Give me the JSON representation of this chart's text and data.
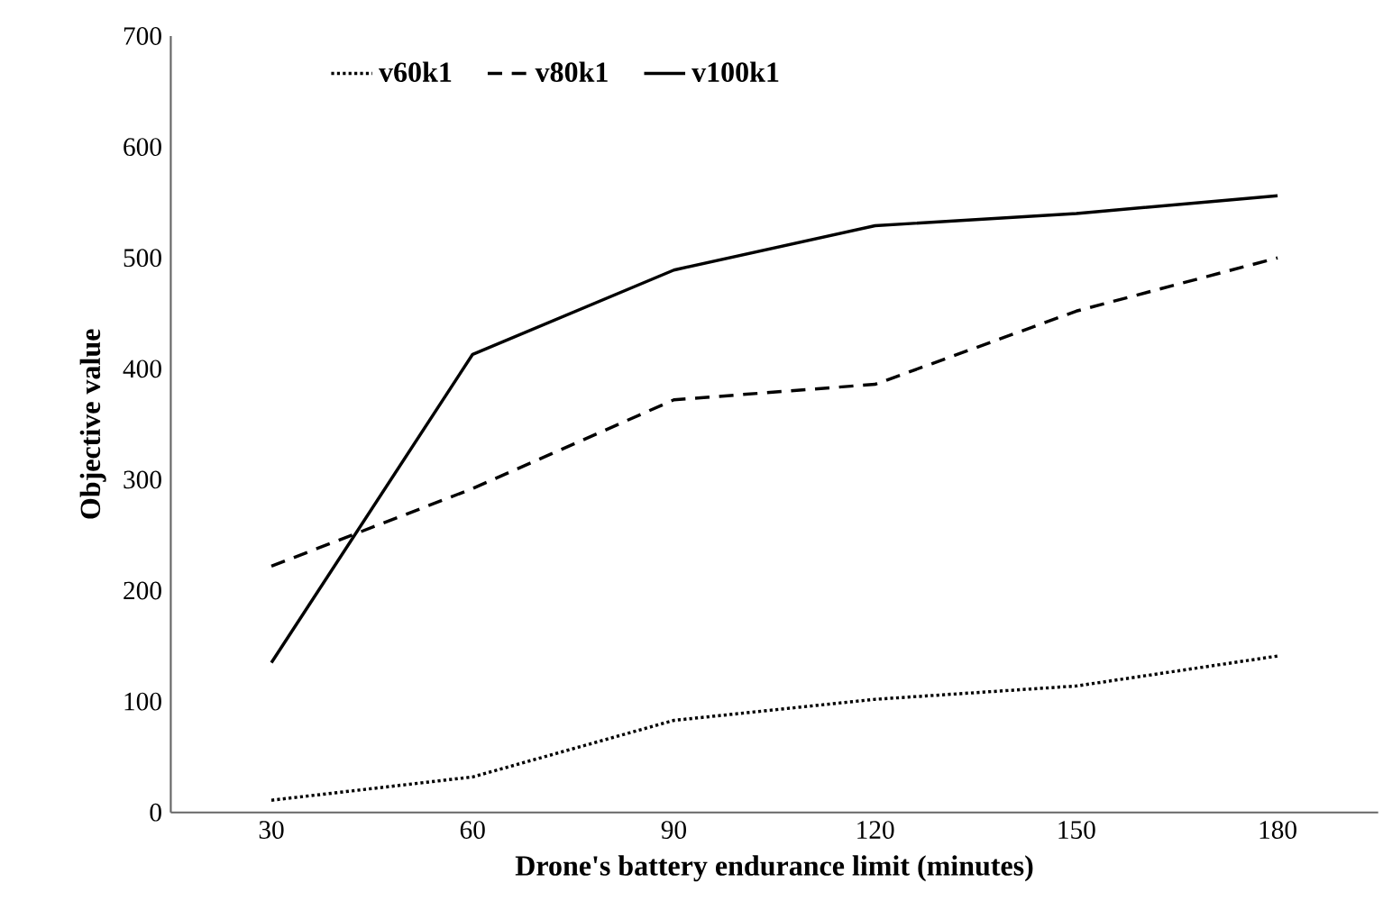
{
  "chart_data": {
    "type": "line",
    "xlabel": "Drone's battery endurance limit (minutes)",
    "ylabel": "Objective value",
    "categories": [
      "30",
      "60",
      "90",
      "120",
      "150",
      "180"
    ],
    "series": [
      {
        "name": "v60k1",
        "color": "#000000",
        "line_style": "dotted",
        "values": [
          11,
          32,
          83,
          102,
          114,
          141
        ]
      },
      {
        "name": "v80k1",
        "color": "#000000",
        "line_style": "dashed",
        "values": [
          222,
          292,
          372,
          386,
          452,
          500
        ]
      },
      {
        "name": "v100k1",
        "color": "#000000",
        "line_style": "solid",
        "values": [
          135,
          413,
          489,
          529,
          540,
          556
        ]
      }
    ],
    "ylim": [
      0,
      700
    ],
    "yticks": [
      0,
      100,
      200,
      300,
      400,
      500,
      600,
      700
    ],
    "grid": false,
    "legend": "top",
    "marker": "none"
  }
}
